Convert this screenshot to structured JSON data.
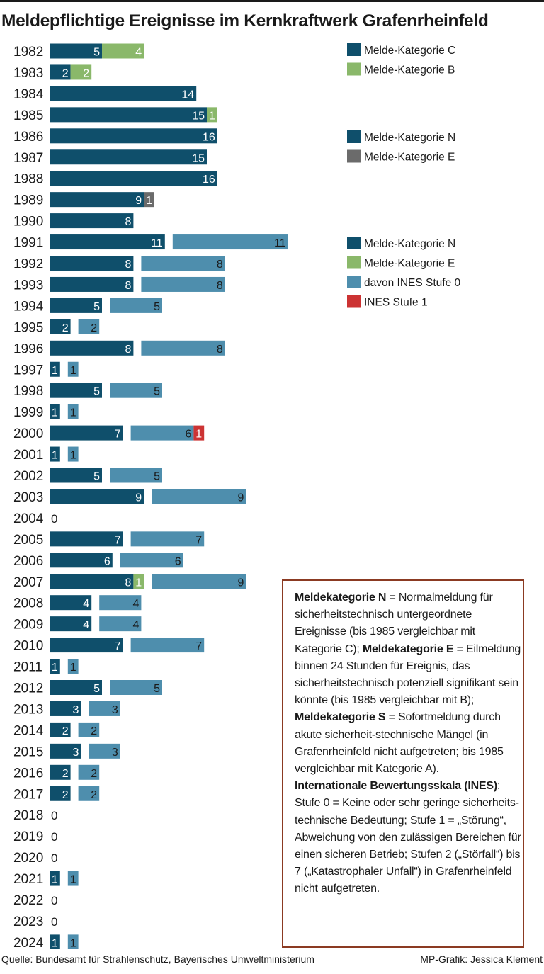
{
  "title": "Meldepflichtige Ereignisse im Kernkraftwerk Grafenrheinfeld",
  "colors": {
    "dark": "#0f4f6b",
    "lightgreen": "#8ab86a",
    "gray": "#6b6b6b",
    "lightblue": "#4e8ead",
    "red": "#cc3333",
    "border": "#8b3a22"
  },
  "legend": {
    "group1": [
      {
        "label": "Melde-Kategorie C",
        "color": "#0f4f6b"
      },
      {
        "label": "Melde-Kategorie B",
        "color": "#8ab86a"
      }
    ],
    "group2": [
      {
        "label": "Melde-Kategorie N",
        "color": "#0f4f6b"
      },
      {
        "label": "Melde-Kategorie E",
        "color": "#6b6b6b"
      }
    ],
    "group3": [
      {
        "label": "Melde-Kategorie N",
        "color": "#0f4f6b"
      },
      {
        "label": "Melde-Kategorie E",
        "color": "#8ab86a"
      },
      {
        "label": "davon INES Stufe 0",
        "color": "#4e8ead"
      },
      {
        "label": "INES Stufe 1",
        "color": "#cc3333"
      }
    ]
  },
  "chart_data": {
    "type": "bar",
    "orientation": "horizontal",
    "title": "Meldepflichtige Ereignisse im Kernkraftwerk Grafenrheinfeld",
    "categories": [
      "1982",
      "1983",
      "1984",
      "1985",
      "1986",
      "1987",
      "1988",
      "1989",
      "1990",
      "1991",
      "1992",
      "1993",
      "1994",
      "1995",
      "1996",
      "1997",
      "1998",
      "1999",
      "2000",
      "2001",
      "2002",
      "2003",
      "2004",
      "2005",
      "2006",
      "2007",
      "2008",
      "2009",
      "2010",
      "2011",
      "2012",
      "2013",
      "2014",
      "2015",
      "2016",
      "2017",
      "2018",
      "2019",
      "2020",
      "2021",
      "2022",
      "2023",
      "2024"
    ],
    "rows": [
      {
        "year": "1982",
        "main": [
          {
            "series": "Melde-Kategorie C",
            "value": 5
          },
          {
            "series": "Melde-Kategorie B",
            "value": 4
          }
        ],
        "ines": []
      },
      {
        "year": "1983",
        "main": [
          {
            "series": "Melde-Kategorie C",
            "value": 2
          },
          {
            "series": "Melde-Kategorie B",
            "value": 2
          }
        ],
        "ines": []
      },
      {
        "year": "1984",
        "main": [
          {
            "series": "Melde-Kategorie C",
            "value": 14
          }
        ],
        "ines": []
      },
      {
        "year": "1985",
        "main": [
          {
            "series": "Melde-Kategorie C",
            "value": 15
          },
          {
            "series": "Melde-Kategorie B",
            "value": 1
          }
        ],
        "ines": []
      },
      {
        "year": "1986",
        "main": [
          {
            "series": "Melde-Kategorie N",
            "value": 16
          }
        ],
        "ines": []
      },
      {
        "year": "1987",
        "main": [
          {
            "series": "Melde-Kategorie N",
            "value": 15
          }
        ],
        "ines": []
      },
      {
        "year": "1988",
        "main": [
          {
            "series": "Melde-Kategorie N",
            "value": 16
          }
        ],
        "ines": []
      },
      {
        "year": "1989",
        "main": [
          {
            "series": "Melde-Kategorie N",
            "value": 9
          },
          {
            "series": "Melde-Kategorie E",
            "value": 1
          }
        ],
        "ines": []
      },
      {
        "year": "1990",
        "main": [
          {
            "series": "Melde-Kategorie N",
            "value": 8
          }
        ],
        "ines": []
      },
      {
        "year": "1991",
        "main": [
          {
            "series": "Melde-Kategorie N",
            "value": 11
          }
        ],
        "ines": [
          {
            "series": "davon INES Stufe 0",
            "value": 11
          }
        ]
      },
      {
        "year": "1992",
        "main": [
          {
            "series": "Melde-Kategorie N",
            "value": 8
          }
        ],
        "ines": [
          {
            "series": "davon INES Stufe 0",
            "value": 8
          }
        ]
      },
      {
        "year": "1993",
        "main": [
          {
            "series": "Melde-Kategorie N",
            "value": 8
          }
        ],
        "ines": [
          {
            "series": "davon INES Stufe 0",
            "value": 8
          }
        ]
      },
      {
        "year": "1994",
        "main": [
          {
            "series": "Melde-Kategorie N",
            "value": 5
          }
        ],
        "ines": [
          {
            "series": "davon INES Stufe 0",
            "value": 5
          }
        ]
      },
      {
        "year": "1995",
        "main": [
          {
            "series": "Melde-Kategorie N",
            "value": 2
          }
        ],
        "ines": [
          {
            "series": "davon INES Stufe 0",
            "value": 2
          }
        ]
      },
      {
        "year": "1996",
        "main": [
          {
            "series": "Melde-Kategorie N",
            "value": 8
          }
        ],
        "ines": [
          {
            "series": "davon INES Stufe 0",
            "value": 8
          }
        ]
      },
      {
        "year": "1997",
        "main": [
          {
            "series": "Melde-Kategorie N",
            "value": 1
          }
        ],
        "ines": [
          {
            "series": "davon INES Stufe 0",
            "value": 1
          }
        ]
      },
      {
        "year": "1998",
        "main": [
          {
            "series": "Melde-Kategorie N",
            "value": 5
          }
        ],
        "ines": [
          {
            "series": "davon INES Stufe 0",
            "value": 5
          }
        ]
      },
      {
        "year": "1999",
        "main": [
          {
            "series": "Melde-Kategorie N",
            "value": 1
          }
        ],
        "ines": [
          {
            "series": "davon INES Stufe 0",
            "value": 1
          }
        ]
      },
      {
        "year": "2000",
        "main": [
          {
            "series": "Melde-Kategorie N",
            "value": 7
          }
        ],
        "ines": [
          {
            "series": "davon INES Stufe 0",
            "value": 6
          },
          {
            "series": "INES Stufe 1",
            "value": 1
          }
        ]
      },
      {
        "year": "2001",
        "main": [
          {
            "series": "Melde-Kategorie N",
            "value": 1
          }
        ],
        "ines": [
          {
            "series": "davon INES Stufe 0",
            "value": 1
          }
        ]
      },
      {
        "year": "2002",
        "main": [
          {
            "series": "Melde-Kategorie N",
            "value": 5
          }
        ],
        "ines": [
          {
            "series": "davon INES Stufe 0",
            "value": 5
          }
        ]
      },
      {
        "year": "2003",
        "main": [
          {
            "series": "Melde-Kategorie N",
            "value": 9
          }
        ],
        "ines": [
          {
            "series": "davon INES Stufe 0",
            "value": 9
          }
        ]
      },
      {
        "year": "2004",
        "main": [],
        "ines": [],
        "total": 0
      },
      {
        "year": "2005",
        "main": [
          {
            "series": "Melde-Kategorie N",
            "value": 7
          }
        ],
        "ines": [
          {
            "series": "davon INES Stufe 0",
            "value": 7
          }
        ]
      },
      {
        "year": "2006",
        "main": [
          {
            "series": "Melde-Kategorie N",
            "value": 6
          }
        ],
        "ines": [
          {
            "series": "davon INES Stufe 0",
            "value": 6
          }
        ]
      },
      {
        "year": "2007",
        "main": [
          {
            "series": "Melde-Kategorie N",
            "value": 8
          },
          {
            "series": "Melde-Kategorie E",
            "value": 1
          }
        ],
        "ines": [
          {
            "series": "davon INES Stufe 0",
            "value": 9
          }
        ]
      },
      {
        "year": "2008",
        "main": [
          {
            "series": "Melde-Kategorie N",
            "value": 4
          }
        ],
        "ines": [
          {
            "series": "davon INES Stufe 0",
            "value": 4
          }
        ]
      },
      {
        "year": "2009",
        "main": [
          {
            "series": "Melde-Kategorie N",
            "value": 4
          }
        ],
        "ines": [
          {
            "series": "davon INES Stufe 0",
            "value": 4
          }
        ]
      },
      {
        "year": "2010",
        "main": [
          {
            "series": "Melde-Kategorie N",
            "value": 7
          }
        ],
        "ines": [
          {
            "series": "davon INES Stufe 0",
            "value": 7
          }
        ]
      },
      {
        "year": "2011",
        "main": [
          {
            "series": "Melde-Kategorie N",
            "value": 1
          }
        ],
        "ines": [
          {
            "series": "davon INES Stufe 0",
            "value": 1
          }
        ]
      },
      {
        "year": "2012",
        "main": [
          {
            "series": "Melde-Kategorie N",
            "value": 5
          }
        ],
        "ines": [
          {
            "series": "davon INES Stufe 0",
            "value": 5
          }
        ]
      },
      {
        "year": "2013",
        "main": [
          {
            "series": "Melde-Kategorie N",
            "value": 3
          }
        ],
        "ines": [
          {
            "series": "davon INES Stufe 0",
            "value": 3
          }
        ]
      },
      {
        "year": "2014",
        "main": [
          {
            "series": "Melde-Kategorie N",
            "value": 2
          }
        ],
        "ines": [
          {
            "series": "davon INES Stufe 0",
            "value": 2
          }
        ]
      },
      {
        "year": "2015",
        "main": [
          {
            "series": "Melde-Kategorie N",
            "value": 3
          }
        ],
        "ines": [
          {
            "series": "davon INES Stufe 0",
            "value": 3
          }
        ]
      },
      {
        "year": "2016",
        "main": [
          {
            "series": "Melde-Kategorie N",
            "value": 2
          }
        ],
        "ines": [
          {
            "series": "davon INES Stufe 0",
            "value": 2
          }
        ]
      },
      {
        "year": "2017",
        "main": [
          {
            "series": "Melde-Kategorie N",
            "value": 2
          }
        ],
        "ines": [
          {
            "series": "davon INES Stufe 0",
            "value": 2
          }
        ]
      },
      {
        "year": "2018",
        "main": [],
        "ines": [],
        "total": 0
      },
      {
        "year": "2019",
        "main": [],
        "ines": [],
        "total": 0
      },
      {
        "year": "2020",
        "main": [],
        "ines": [],
        "total": 0
      },
      {
        "year": "2021",
        "main": [
          {
            "series": "Melde-Kategorie N",
            "value": 1
          }
        ],
        "ines": [
          {
            "series": "davon INES Stufe 0",
            "value": 1
          }
        ]
      },
      {
        "year": "2022",
        "main": [],
        "ines": [],
        "total": 0
      },
      {
        "year": "2023",
        "main": [],
        "ines": [],
        "total": 0
      },
      {
        "year": "2024",
        "main": [
          {
            "series": "Melde-Kategorie N",
            "value": 1
          }
        ],
        "ines": [
          {
            "series": "davon INES Stufe 0",
            "value": 1
          }
        ]
      }
    ]
  },
  "note": {
    "p1_bold": "Meldekategorie N",
    "p1_text": " = Normalmeldung für sicherheitstechnisch untergeordnete Ereignisse (bis 1985 vergleichbar mit Kategorie C); ",
    "p2_bold": "Meldekategorie E",
    "p2_text": " = Eilmeldung binnen 24 Stunden für Ereignis, das sicherheitstechnisch potenziell signifikant sein könnte (bis 1985 vergleichbar mit B); ",
    "p3_bold": "Meldekategorie S",
    "p3_text": " = Sofortmeldung durch akute sicherheit-stechnische Mängel (in Grafenrheinfeld nicht aufgetreten; bis 1985 vergleichbar mit Kategorie A).",
    "p4_bold": "Internationale Bewertungsskala (INES)",
    "p4_text": ": Stufe 0 = Keine oder sehr geringe sicherheits-technische Bedeutung; Stufe 1 = „Störung“, Abweichung von den zulässigen Bereichen für einen sicheren Betrieb; Stufen 2 („Störfall“) bis 7 („Katastrophaler Unfall“) in Grafenrheinfeld nicht aufgetreten."
  },
  "footer": {
    "source": "Quelle: Bundesamt für Strahlenschutz, Bayerisches Umweltministerium",
    "credit": "MP-Grafik: Jessica Klement"
  }
}
